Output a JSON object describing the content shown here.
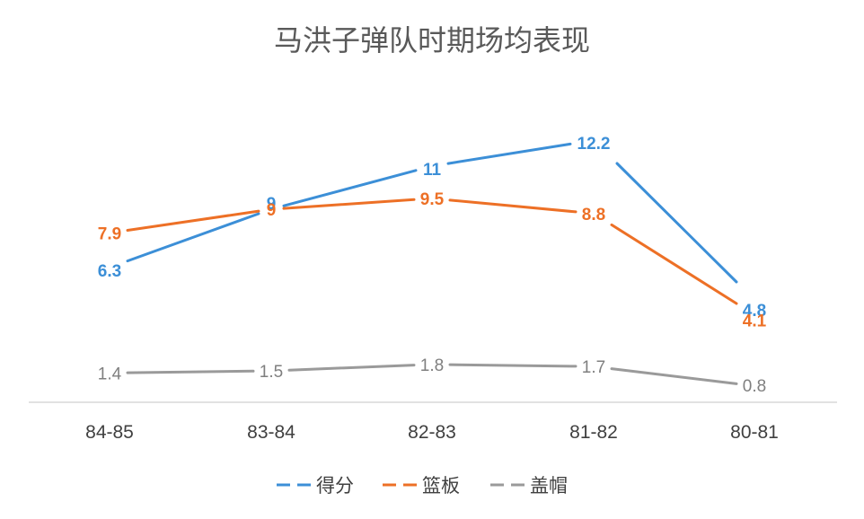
{
  "chart_data": {
    "type": "line",
    "title": "马洪子弹队时期场均表现",
    "categories": [
      "84-85",
      "83-84",
      "82-83",
      "81-82",
      "80-81"
    ],
    "series": [
      {
        "name": "得分",
        "color": "#3c8fd7",
        "values": [
          6.3,
          9,
          11,
          12.2,
          4.8
        ],
        "labels": [
          "6.3",
          "9",
          "11",
          "12.2",
          "4.8"
        ]
      },
      {
        "name": "篮板",
        "color": "#ed7026",
        "values": [
          7.9,
          9,
          9.5,
          8.8,
          4.1
        ],
        "labels": [
          "7.9",
          "9",
          "9.5",
          "8.8",
          "4.1"
        ]
      },
      {
        "name": "盖帽",
        "color": "#9a9a9a",
        "values": [
          1.4,
          1.5,
          1.8,
          1.7,
          0.8
        ],
        "labels": [
          "1.4",
          "1.5",
          "1.8",
          "1.7",
          "0.8"
        ]
      }
    ],
    "xlabel": "",
    "ylabel": "",
    "ylim": [
      0,
      13
    ],
    "grid": false,
    "legend": "bottom"
  }
}
